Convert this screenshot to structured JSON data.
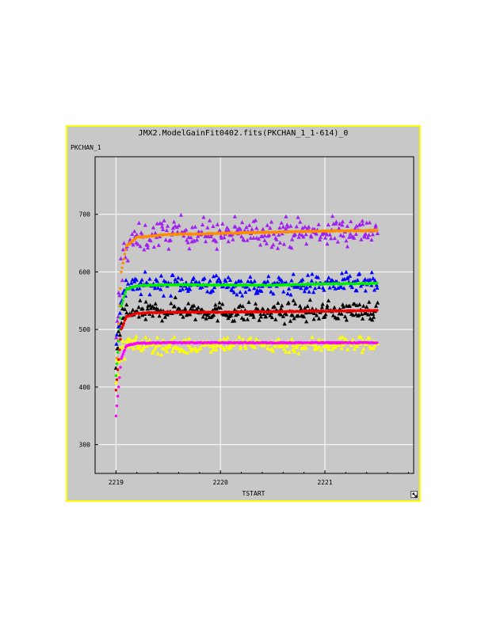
{
  "window": {
    "title": "JMX2.ModelGainFit0402.fits(PKCHAN_1_1-614)_0"
  },
  "chart_data": {
    "type": "scatter",
    "title": "JMX2.ModelGainFit0402.fits(PKCHAN_1_1-614)_0",
    "xlabel": "TSTART",
    "ylabel": "PKCHAN_1",
    "xlim": [
      2218.8,
      2221.85
    ],
    "ylim": [
      250,
      800
    ],
    "xticks": [
      2219,
      2220,
      2221
    ],
    "yticks": [
      300,
      400,
      500,
      600,
      700
    ],
    "grid": true,
    "series": [
      {
        "color": "#a020f0",
        "marker": "triangle",
        "plateau": 665,
        "spread": 18,
        "start": 390,
        "end": 672,
        "x": [
          2219.0,
          2219.05,
          2219.1,
          2219.2,
          2219.4,
          2219.6,
          2219.8,
          2220.0,
          2220.3,
          2220.6,
          2220.9,
          2221.2,
          2221.5
        ],
        "y": [
          460,
          610,
          650,
          655,
          665,
          670,
          668,
          665,
          668,
          670,
          667,
          672,
          675
        ]
      },
      {
        "color": "#0000ff",
        "marker": "triangle",
        "plateau": 578,
        "spread": 12,
        "start": 400,
        "end": 578,
        "x": [
          2219.0,
          2219.05,
          2219.1,
          2219.3,
          2219.6,
          2220.0,
          2220.4,
          2220.8,
          2221.2,
          2221.5
        ],
        "y": [
          450,
          560,
          575,
          578,
          580,
          578,
          575,
          578,
          580,
          578
        ]
      },
      {
        "color": "#000000",
        "marker": "triangle",
        "plateau": 530,
        "spread": 12,
        "start": 395,
        "end": 533,
        "x": [
          2219.0,
          2219.05,
          2219.1,
          2219.3,
          2219.6,
          2220.0,
          2220.4,
          2220.8,
          2221.2,
          2221.5
        ],
        "y": [
          440,
          515,
          528,
          530,
          535,
          530,
          528,
          530,
          532,
          533
        ]
      },
      {
        "color": "#ffff00",
        "marker": "triangle",
        "plateau": 474,
        "spread": 10,
        "start": 350,
        "end": 474,
        "x": [
          2219.0,
          2219.05,
          2219.1,
          2219.3,
          2219.6,
          2220.0,
          2220.4,
          2220.8,
          2221.2,
          2221.5
        ],
        "y": [
          420,
          465,
          472,
          474,
          470,
          476,
          474,
          472,
          476,
          474
        ]
      },
      {
        "color": "#ff8c00",
        "marker": "fit",
        "plateau": 668,
        "spread": 0,
        "start": 390,
        "end": 672,
        "x": [
          2219.0,
          2219.05,
          2219.1,
          2219.2,
          2219.5,
          2220.0,
          2220.5,
          2221.0,
          2221.5
        ],
        "y": [
          420,
          600,
          645,
          660,
          665,
          667,
          669,
          671,
          672
        ]
      },
      {
        "color": "#00ee00",
        "marker": "fit",
        "plateau": 578,
        "spread": 0,
        "start": 400,
        "end": 580,
        "x": [
          2219.0,
          2219.05,
          2219.1,
          2219.2,
          2219.5,
          2220.0,
          2220.5,
          2221.0,
          2221.5
        ],
        "y": [
          420,
          540,
          570,
          576,
          578,
          577,
          577,
          579,
          580
        ]
      },
      {
        "color": "#ee0000",
        "marker": "fit",
        "plateau": 530,
        "spread": 0,
        "start": 395,
        "end": 533,
        "x": [
          2219.0,
          2219.05,
          2219.1,
          2219.2,
          2219.5,
          2220.0,
          2220.5,
          2221.0,
          2221.5
        ],
        "y": [
          395,
          500,
          522,
          528,
          530,
          530,
          531,
          532,
          533
        ]
      },
      {
        "color": "#ff00ff",
        "marker": "fit",
        "plateau": 477,
        "spread": 0,
        "start": 350,
        "end": 477,
        "x": [
          2219.0,
          2219.05,
          2219.1,
          2219.2,
          2219.5,
          2220.0,
          2220.5,
          2221.0,
          2221.5
        ],
        "y": [
          350,
          450,
          472,
          476,
          477,
          477,
          477,
          477,
          477
        ]
      }
    ]
  },
  "icons": {
    "resize": "resize-arrow-icon"
  }
}
